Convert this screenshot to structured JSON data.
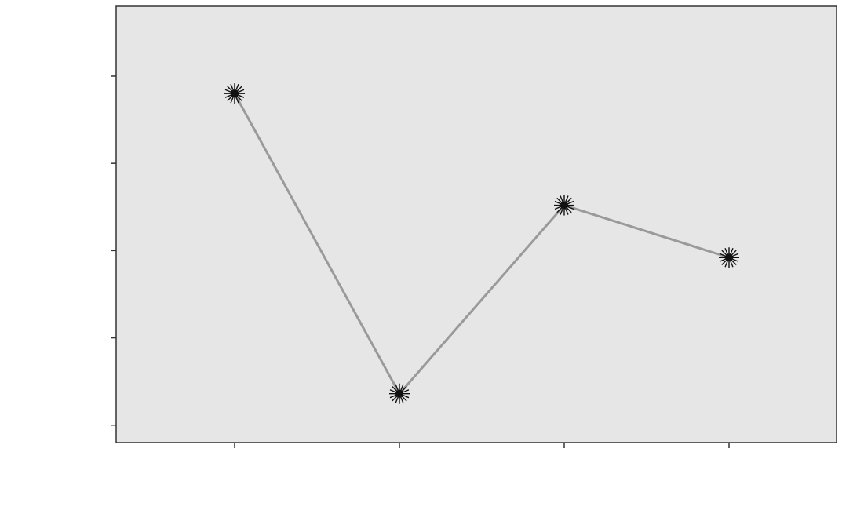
{
  "chart_data": {
    "type": "line",
    "title": "",
    "xlabel": "",
    "ylabel": "",
    "categories": [
      "",
      "",
      "",
      ""
    ],
    "point_labels": [
      "",
      "",
      "",
      ""
    ],
    "series": [
      {
        "values": [
          4.45,
          3.59,
          4.13,
          3.98
        ]
      }
    ],
    "ylim": [
      3.45,
      4.7
    ],
    "yticks": [
      3.5,
      3.75,
      4.0,
      4.25,
      4.5
    ],
    "ytick_labels": [
      "",
      "",
      "",
      "",
      ""
    ],
    "grid": false,
    "legend": "none",
    "colors": {
      "plot_bg": "#e6e6e6",
      "line": "#9a9a9a",
      "marker": "#111111",
      "frame": "#333333"
    }
  }
}
